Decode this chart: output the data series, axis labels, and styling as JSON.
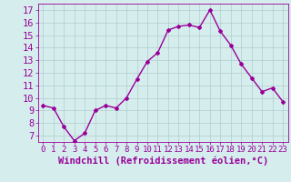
{
  "x": [
    0,
    1,
    2,
    3,
    4,
    5,
    6,
    7,
    8,
    9,
    10,
    11,
    12,
    13,
    14,
    15,
    16,
    17,
    18,
    19,
    20,
    21,
    22,
    23
  ],
  "y": [
    9.4,
    9.2,
    7.7,
    6.6,
    7.2,
    9.0,
    9.4,
    9.2,
    10.0,
    11.5,
    12.9,
    13.6,
    15.4,
    15.7,
    15.8,
    15.6,
    17.0,
    15.3,
    14.2,
    12.7,
    11.6,
    10.5,
    10.8,
    9.7
  ],
  "line_color": "#990099",
  "marker": "D",
  "marker_size": 2.0,
  "line_width": 1.0,
  "xlabel": "Windchill (Refroidissement éolien,°C)",
  "xlabel_fontsize": 7.5,
  "ylim": [
    6.5,
    17.5
  ],
  "xlim": [
    -0.5,
    23.5
  ],
  "yticks": [
    7,
    8,
    9,
    10,
    11,
    12,
    13,
    14,
    15,
    16,
    17
  ],
  "xticks": [
    0,
    1,
    2,
    3,
    4,
    5,
    6,
    7,
    8,
    9,
    10,
    11,
    12,
    13,
    14,
    15,
    16,
    17,
    18,
    19,
    20,
    21,
    22,
    23
  ],
  "xtick_labels": [
    "0",
    "1",
    "2",
    "3",
    "4",
    "5",
    "6",
    "7",
    "8",
    "9",
    "10",
    "11",
    "12",
    "13",
    "14",
    "15",
    "16",
    "17",
    "18",
    "19",
    "20",
    "21",
    "22",
    "23"
  ],
  "ytick_labels": [
    "7",
    "8",
    "9",
    "10",
    "11",
    "12",
    "13",
    "14",
    "15",
    "16",
    "17"
  ],
  "background_color": "#d5eeed",
  "grid_color": "#b0cccc",
  "tick_color": "#990099",
  "tick_label_color": "#990099",
  "xlabel_color": "#990099",
  "tick_fontsize": 6.5,
  "ytick_fontsize": 7.5
}
